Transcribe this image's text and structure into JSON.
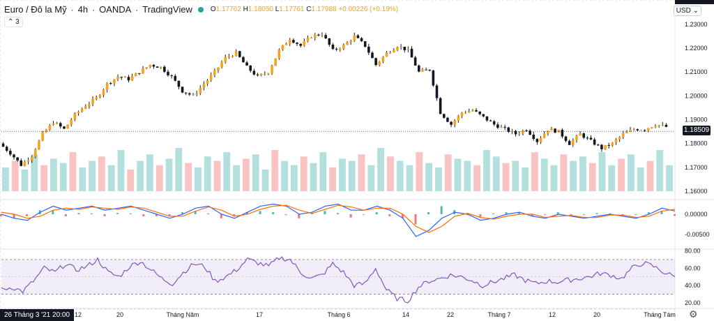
{
  "header": {
    "symbol": "Euro / Đô la Mỹ",
    "interval": "4h",
    "exchange": "OANDA",
    "source": "TradingView",
    "open_label": "O",
    "open": "1.17762",
    "high_label": "H",
    "high": "1.18050",
    "low_label": "L",
    "low": "1.17761",
    "close_label": "C",
    "close": "1.17988",
    "change": "+0.00226 (+0.19%)",
    "indicator_count": "3"
  },
  "currency": "USD",
  "last_price": "1.18509",
  "cursor_date": "26 Tháng 3 '21  20:00",
  "colors": {
    "up": "#26a69a",
    "down": "#ef5350",
    "candle_body": "#f7a21b",
    "macd": "#2962ff",
    "signal": "#ff6d00",
    "rsi": "#7e57c2"
  },
  "chart_data": [
    {
      "type": "candlestick",
      "title": "EUR/USD 4h",
      "y_ticks": [
        "1.23000",
        "1.22000",
        "1.21000",
        "1.20000",
        "1.19000",
        "1.18000",
        "1.17000",
        "1.16000"
      ],
      "x_ticks": [
        "12",
        "20",
        "Tháng Năm",
        "17",
        "Tháng 6",
        "14",
        "22",
        "Tháng 7",
        "12",
        "20",
        "Tháng Tám"
      ],
      "ylim": [
        1.16,
        1.232
      ],
      "close_path": [
        1.18,
        1.176,
        1.171,
        1.175,
        1.184,
        1.189,
        1.186,
        1.192,
        1.196,
        1.199,
        1.205,
        1.208,
        1.207,
        1.21,
        1.213,
        1.212,
        1.208,
        1.202,
        1.2,
        1.205,
        1.21,
        1.216,
        1.218,
        1.212,
        1.208,
        1.21,
        1.219,
        1.224,
        1.221,
        1.225,
        1.226,
        1.219,
        1.221,
        1.225,
        1.221,
        1.213,
        1.218,
        1.221,
        1.219,
        1.21,
        1.211,
        1.193,
        1.188,
        1.193,
        1.194,
        1.191,
        1.188,
        1.186,
        1.184,
        1.186,
        1.181,
        1.186,
        1.185,
        1.18,
        1.184,
        1.181,
        1.178,
        1.18,
        1.184,
        1.186,
        1.186,
        1.188,
        1.187
      ]
    },
    {
      "type": "bar",
      "title": "Volume",
      "values": [
        0.55,
        0.7,
        0.5,
        0.85,
        0.6,
        0.75,
        0.65,
        0.9,
        0.55,
        0.7,
        0.8,
        0.6,
        0.95,
        0.5,
        0.7,
        0.85,
        0.6,
        0.75,
        1.0,
        0.65,
        0.55,
        0.8,
        0.7,
        0.9,
        0.6,
        0.75,
        0.85,
        0.5,
        0.95,
        0.7,
        0.6,
        0.8,
        0.65,
        0.9,
        0.55,
        0.75,
        0.7,
        0.85,
        0.6,
        1.0,
        0.8,
        0.7,
        0.6,
        0.9,
        0.65,
        0.55,
        0.85,
        0.75,
        0.7,
        0.6,
        0.95,
        0.8,
        0.65,
        0.7,
        0.55,
        0.9,
        0.75,
        0.6,
        0.85,
        0.7,
        0.8,
        0.65,
        0.9,
        0.6,
        0.75,
        0.85,
        0.55,
        0.7,
        0.95,
        0.6
      ]
    },
    {
      "type": "line",
      "title": "MACD",
      "y_ticks": [
        "0.00000",
        "-0.00500"
      ],
      "series": [
        {
          "values": [
            0.0,
            -0.001,
            -0.0015,
            0.0005,
            0.002,
            0.001,
            0.0015,
            0.002,
            0.001,
            0.0015,
            0.002,
            0.001,
            0.0,
            -0.001,
            0.0,
            0.0015,
            0.002,
            0.0,
            -0.001,
            0.0005,
            0.002,
            0.0025,
            0.002,
            0.0,
            0.0005,
            0.002,
            0.0025,
            0.001,
            0.001,
            0.002,
            0.001,
            -0.001,
            -0.0055,
            -0.004,
            -0.001,
            0.0005,
            0.0,
            -0.0015,
            -0.001,
            0.0,
            0.0005,
            -0.0005,
            -0.001,
            0.0,
            -0.0005,
            -0.001,
            -0.0005,
            0.0,
            -0.0005,
            -0.001,
            0.0,
            0.0015,
            0.0008
          ]
        },
        {
          "values": [
            0.0005,
            0.0,
            -0.001,
            -0.0005,
            0.001,
            0.0015,
            0.0012,
            0.0018,
            0.0015,
            0.0012,
            0.0018,
            0.0015,
            0.0005,
            -0.0005,
            -0.0005,
            0.0008,
            0.0018,
            0.001,
            -0.0005,
            0.0,
            0.0012,
            0.002,
            0.0022,
            0.001,
            0.0002,
            0.0012,
            0.0022,
            0.0018,
            0.001,
            0.0015,
            0.0015,
            0.0,
            -0.003,
            -0.0045,
            -0.003,
            -0.0005,
            0.0002,
            -0.0008,
            -0.0012,
            -0.0005,
            0.0,
            0.0,
            -0.0008,
            -0.0005,
            -0.0003,
            -0.0008,
            -0.0008,
            -0.0002,
            -0.0002,
            -0.0008,
            -0.0005,
            0.0008,
            0.0012
          ]
        }
      ]
    },
    {
      "type": "line",
      "title": "RSI",
      "y_ticks": [
        "80.00",
        "60.00",
        "40.00",
        "20.00"
      ],
      "band": [
        30,
        70
      ],
      "ylim": [
        15,
        82
      ],
      "series": [
        {
          "values": [
            35,
            38,
            33,
            45,
            60,
            55,
            65,
            58,
            62,
            70,
            55,
            50,
            62,
            68,
            58,
            48,
            42,
            55,
            65,
            62,
            45,
            50,
            58,
            70,
            66,
            62,
            72,
            70,
            55,
            48,
            52,
            65,
            55,
            40,
            42,
            60,
            35,
            25,
            22,
            38,
            45,
            48,
            52,
            50,
            46,
            40,
            44,
            48,
            52,
            46,
            42,
            45,
            44,
            46,
            48,
            50,
            54,
            52,
            48,
            60,
            66,
            62,
            55,
            50
          ]
        }
      ]
    }
  ]
}
